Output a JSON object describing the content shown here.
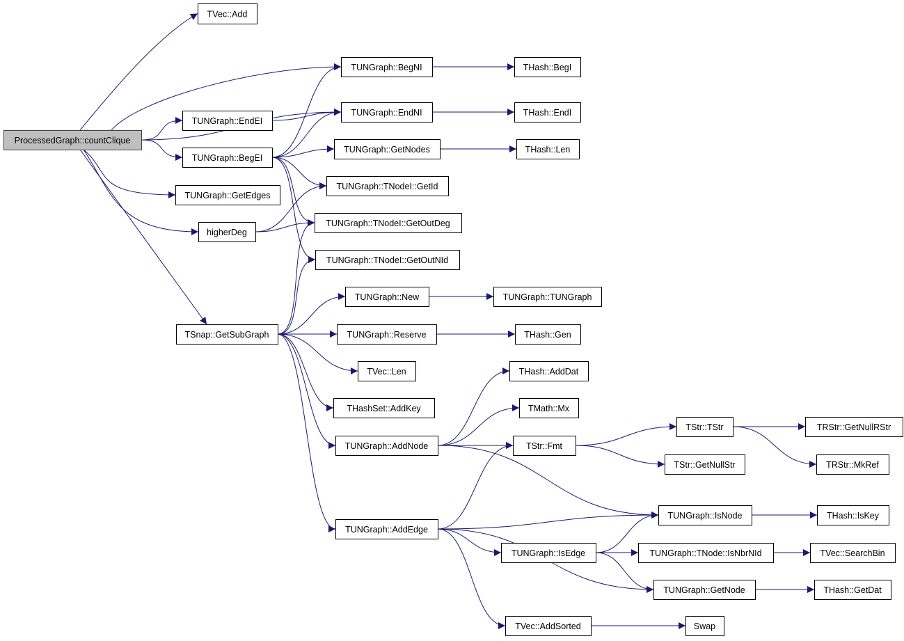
{
  "graph": {
    "edge_color": "#191970",
    "root_fill": "#bfbfbf",
    "nodes": [
      {
        "id": "countClique",
        "label": "ProcessedGraph::countClique",
        "root": true
      },
      {
        "id": "vecAdd",
        "label": "TVec::Add"
      },
      {
        "id": "begNI",
        "label": "TUNGraph::BegNI"
      },
      {
        "id": "endNI",
        "label": "TUNGraph::EndNI"
      },
      {
        "id": "endEI",
        "label": "TUNGraph::EndEI"
      },
      {
        "id": "begEI",
        "label": "TUNGraph::BegEI"
      },
      {
        "id": "getNodes",
        "label": "TUNGraph::GetNodes"
      },
      {
        "id": "getEdges",
        "label": "TUNGraph::GetEdges"
      },
      {
        "id": "getId",
        "label": "TUNGraph::TNodeI::GetId"
      },
      {
        "id": "higherDeg",
        "label": "higherDeg"
      },
      {
        "id": "getOutDeg",
        "label": "TUNGraph::TNodeI::GetOutDeg"
      },
      {
        "id": "getOutNId",
        "label": "TUNGraph::TNodeI::GetOutNId"
      },
      {
        "id": "newG",
        "label": "TUNGraph::New"
      },
      {
        "id": "getSubGraph",
        "label": "TSnap::GetSubGraph"
      },
      {
        "id": "reserve",
        "label": "TUNGraph::Reserve"
      },
      {
        "id": "vecLen",
        "label": "TVec::Len"
      },
      {
        "id": "addKey",
        "label": "THashSet::AddKey"
      },
      {
        "id": "addNode",
        "label": "TUNGraph::AddNode"
      },
      {
        "id": "addEdge",
        "label": "TUNGraph::AddEdge"
      },
      {
        "id": "begI",
        "label": "THash::BegI"
      },
      {
        "id": "endI",
        "label": "THash::EndI"
      },
      {
        "id": "hashLen",
        "label": "THash::Len"
      },
      {
        "id": "ctor",
        "label": "TUNGraph::TUNGraph"
      },
      {
        "id": "gen",
        "label": "THash::Gen"
      },
      {
        "id": "addDat",
        "label": "THash::AddDat"
      },
      {
        "id": "mx",
        "label": "TMath::Mx"
      },
      {
        "id": "fmt",
        "label": "TStr::Fmt"
      },
      {
        "id": "isEdge",
        "label": "TUNGraph::IsEdge"
      },
      {
        "id": "addSorted",
        "label": "TVec::AddSorted"
      },
      {
        "id": "tstr",
        "label": "TStr::TStr"
      },
      {
        "id": "getNullStr",
        "label": "TStr::GetNullStr"
      },
      {
        "id": "isNode",
        "label": "TUNGraph::IsNode"
      },
      {
        "id": "isNbrNId",
        "label": "TUNGraph::TNode::IsNbrNId"
      },
      {
        "id": "getNode",
        "label": "TUNGraph::GetNode"
      },
      {
        "id": "swap",
        "label": "Swap"
      },
      {
        "id": "getNullRStr",
        "label": "TRStr::GetNullRStr"
      },
      {
        "id": "mkRef",
        "label": "TRStr::MkRef"
      },
      {
        "id": "isKey",
        "label": "THash::IsKey"
      },
      {
        "id": "searchBin",
        "label": "TVec::SearchBin"
      },
      {
        "id": "getDat",
        "label": "THash::GetDat"
      }
    ],
    "edges": [
      [
        "countClique",
        "vecAdd"
      ],
      [
        "countClique",
        "begNI"
      ],
      [
        "countClique",
        "endNI"
      ],
      [
        "countClique",
        "endEI"
      ],
      [
        "countClique",
        "begEI"
      ],
      [
        "countClique",
        "getEdges"
      ],
      [
        "countClique",
        "higherDeg"
      ],
      [
        "countClique",
        "getSubGraph"
      ],
      [
        "endEI",
        "endNI"
      ],
      [
        "begEI",
        "begNI"
      ],
      [
        "begEI",
        "endNI"
      ],
      [
        "begEI",
        "getNodes"
      ],
      [
        "begEI",
        "getId"
      ],
      [
        "begEI",
        "getOutDeg"
      ],
      [
        "begEI",
        "getOutNId"
      ],
      [
        "higherDeg",
        "getId"
      ],
      [
        "higherDeg",
        "getOutDeg"
      ],
      [
        "getSubGraph",
        "getOutDeg"
      ],
      [
        "getSubGraph",
        "getOutNId"
      ],
      [
        "getSubGraph",
        "newG"
      ],
      [
        "getSubGraph",
        "reserve"
      ],
      [
        "getSubGraph",
        "vecLen"
      ],
      [
        "getSubGraph",
        "addKey"
      ],
      [
        "getSubGraph",
        "addNode"
      ],
      [
        "getSubGraph",
        "addEdge"
      ],
      [
        "begNI",
        "begI"
      ],
      [
        "endNI",
        "endI"
      ],
      [
        "getNodes",
        "hashLen"
      ],
      [
        "newG",
        "ctor"
      ],
      [
        "reserve",
        "gen"
      ],
      [
        "addNode",
        "addDat"
      ],
      [
        "addNode",
        "mx"
      ],
      [
        "addNode",
        "fmt"
      ],
      [
        "addNode",
        "isNode"
      ],
      [
        "addEdge",
        "fmt"
      ],
      [
        "addEdge",
        "isNode"
      ],
      [
        "addEdge",
        "isEdge"
      ],
      [
        "addEdge",
        "getNode"
      ],
      [
        "addEdge",
        "addSorted"
      ],
      [
        "fmt",
        "tstr"
      ],
      [
        "fmt",
        "getNullStr"
      ],
      [
        "tstr",
        "getNullRStr"
      ],
      [
        "tstr",
        "mkRef"
      ],
      [
        "isNode",
        "isKey"
      ],
      [
        "isEdge",
        "isNode"
      ],
      [
        "isEdge",
        "isNbrNId"
      ],
      [
        "isEdge",
        "getNode"
      ],
      [
        "isNbrNId",
        "searchBin"
      ],
      [
        "getNode",
        "getDat"
      ],
      [
        "addSorted",
        "swap"
      ]
    ]
  }
}
